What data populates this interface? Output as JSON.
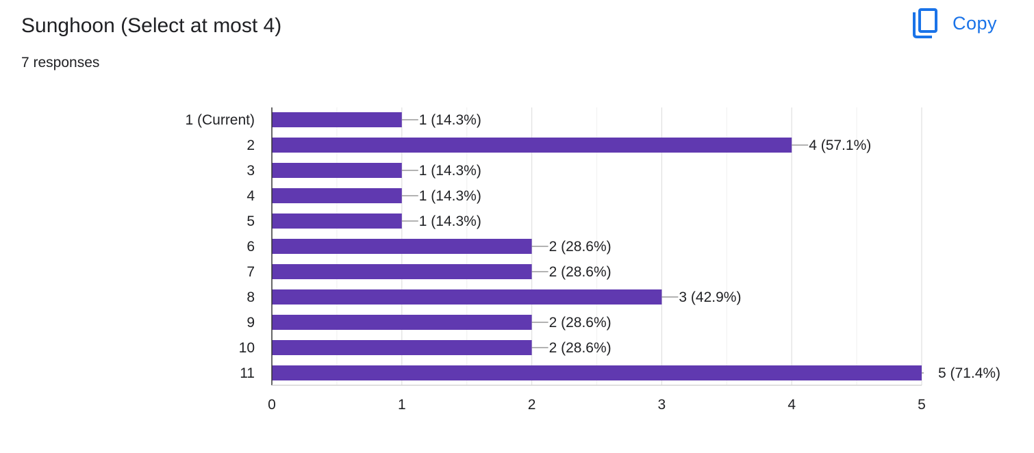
{
  "header": {
    "title": "Sunghoon (Select at most 4)",
    "responses": "7 responses",
    "copy_label": "Copy"
  },
  "colors": {
    "bar": "#6039b0",
    "accent": "#1a73e8",
    "grid": "#e8e8e8",
    "axis": "#333333",
    "connector": "#999999"
  },
  "chart_data": {
    "type": "bar",
    "orientation": "horizontal",
    "categories": [
      "1 (Current)",
      "2",
      "3",
      "4",
      "5",
      "6",
      "7",
      "8",
      "9",
      "10",
      "11"
    ],
    "values": [
      1,
      4,
      1,
      1,
      1,
      2,
      2,
      3,
      2,
      2,
      5
    ],
    "labels": [
      "1 (14.3%)",
      "4 (57.1%)",
      "1 (14.3%)",
      "1 (14.3%)",
      "1 (14.3%)",
      "2 (28.6%)",
      "2 (28.6%)",
      "3 (42.9%)",
      "2 (28.6%)",
      "2 (28.6%)",
      "5 (71.4%)"
    ],
    "xlim": [
      0,
      5
    ],
    "xticks": [
      "0",
      "1",
      "2",
      "3",
      "4",
      "5"
    ],
    "grid": true,
    "legend": "none"
  }
}
